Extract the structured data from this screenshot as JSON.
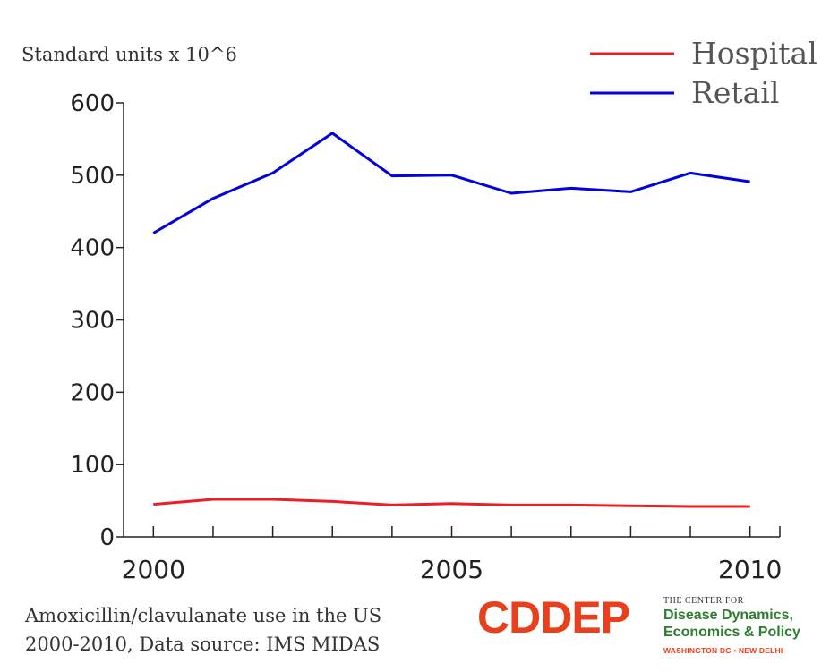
{
  "chart_data": {
    "type": "line",
    "ylabel": "Standard units x 10^6",
    "x": [
      2000,
      2001,
      2002,
      2003,
      2004,
      2005,
      2006,
      2007,
      2008,
      2009,
      2010
    ],
    "xticks": [
      2000,
      2005,
      2010
    ],
    "xlim": [
      1999.5,
      2010.5
    ],
    "ylim": [
      0,
      600
    ],
    "yticks": [
      0,
      100,
      200,
      300,
      400,
      500,
      600
    ],
    "legend_position": "top-right",
    "grid": false,
    "series": [
      {
        "name": "Hospital",
        "color": "#ee1c25",
        "values": [
          45,
          52,
          52,
          49,
          44,
          46,
          44,
          44,
          43,
          42,
          42
        ]
      },
      {
        "name": "Retail",
        "color": "#0000e0",
        "values": [
          420,
          468,
          503,
          558,
          499,
          500,
          475,
          482,
          477,
          503,
          491
        ]
      }
    ]
  },
  "caption": {
    "line1": "Amoxicillin/clavulanate use in the US",
    "line2": "2000-2010, Data source: IMS MIDAS"
  },
  "logo": {
    "mark": "CDDEP",
    "small": "THE CENTER FOR",
    "name_line1": "Disease Dynamics,",
    "name_line2": "Economics & Policy",
    "cities": "WASHINGTON DC • NEW DELHI",
    "mark_color": "#e8401c",
    "name_color": "#2e7d32",
    "city_color": "#e8401c"
  }
}
